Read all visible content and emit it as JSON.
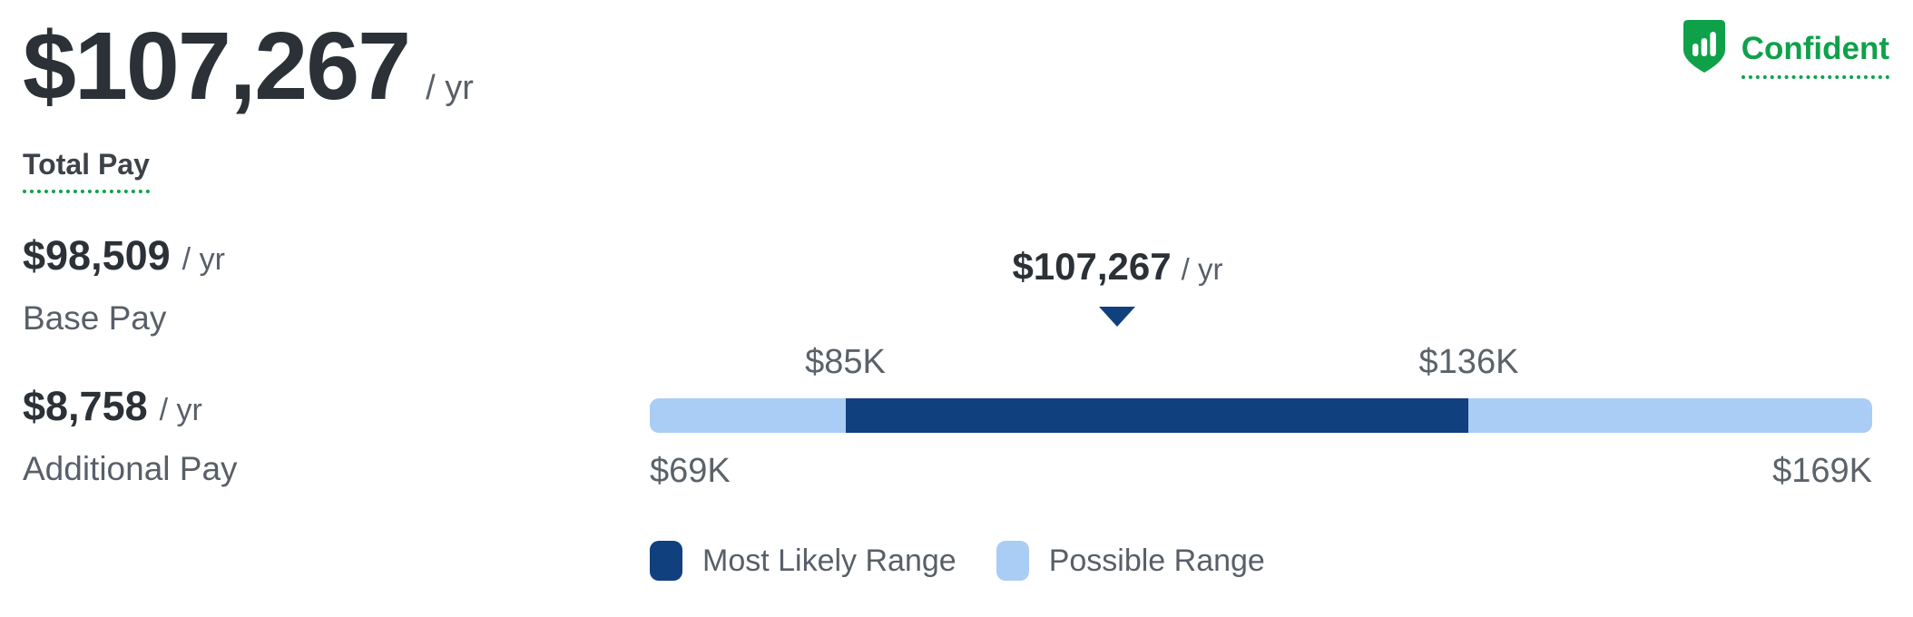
{
  "header": {
    "total_pay_value": "$107,267",
    "total_pay_period": "/ yr",
    "total_pay_label": "Total Pay",
    "confidence": {
      "label": "Confident",
      "icon": "shield-bars-icon",
      "color": "#0fa14a"
    }
  },
  "breakdown": [
    {
      "value": "$98,509",
      "period": "/ yr",
      "label": "Base Pay"
    },
    {
      "value": "$8,758",
      "period": "/ yr",
      "label": "Additional Pay"
    }
  ],
  "chart_data": {
    "type": "range-bar",
    "marker": {
      "value": 107267,
      "label": "$107,267",
      "suffix": "/ yr"
    },
    "range_min": 69000,
    "range_max": 169000,
    "likely_min": 85000,
    "likely_max": 136000,
    "range_min_label": "$69K",
    "range_max_label": "$169K",
    "likely_min_label": "$85K",
    "likely_max_label": "$136K",
    "colors": {
      "most_likely": "#11407e",
      "possible": "#a9cdf5"
    },
    "legend": [
      {
        "label": "Most Likely Range",
        "color": "#11407e"
      },
      {
        "label": "Possible Range",
        "color": "#a9cdf5"
      }
    ],
    "layout": {
      "legend_position": "bottom",
      "grid": false
    }
  },
  "colors": {
    "dark_text": "#2b3137",
    "muted_text": "#595f68",
    "green": "#0fa14a"
  }
}
